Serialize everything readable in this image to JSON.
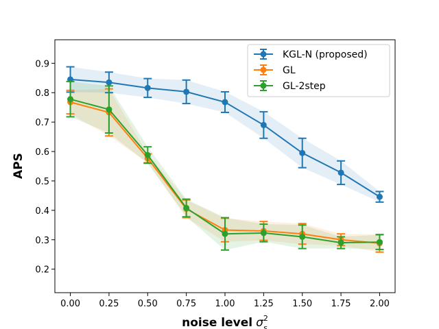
{
  "chart_data": {
    "type": "line",
    "title": "",
    "xlabel": "noise level",
    "xlabel_symbol": "σ",
    "xlabel_sup": "2",
    "xlabel_sub": "s",
    "ylabel": "APS",
    "xlim": [
      -0.1,
      2.1
    ],
    "ylim": [
      0.12,
      0.98
    ],
    "grid": false,
    "legend_position": "top-right",
    "x": [
      0.0,
      0.25,
      0.5,
      0.75,
      1.0,
      1.25,
      1.5,
      1.75,
      2.0
    ],
    "x_ticks": [
      0.0,
      0.25,
      0.5,
      0.75,
      1.0,
      1.25,
      1.5,
      1.75,
      2.0
    ],
    "x_tick_labels": [
      "0.00",
      "0.25",
      "0.50",
      "0.75",
      "1.00",
      "1.25",
      "1.50",
      "1.75",
      "2.00"
    ],
    "y_ticks": [
      0.2,
      0.3,
      0.4,
      0.5,
      0.6,
      0.7,
      0.8,
      0.9
    ],
    "y_tick_labels": [
      "0.2",
      "0.3",
      "0.4",
      "0.5",
      "0.6",
      "0.7",
      "0.8",
      "0.9"
    ],
    "series": [
      {
        "name": "KGL-N (proposed)",
        "color": "#1f77b4",
        "values": [
          0.845,
          0.835,
          0.816,
          0.803,
          0.768,
          0.69,
          0.595,
          0.528,
          0.446
        ],
        "errors": [
          0.043,
          0.035,
          0.032,
          0.04,
          0.035,
          0.045,
          0.05,
          0.04,
          0.018
        ]
      },
      {
        "name": "GL",
        "color": "#ff7f0e",
        "values": [
          0.768,
          0.733,
          0.577,
          0.405,
          0.333,
          0.33,
          0.32,
          0.3,
          0.288
        ],
        "errors": [
          0.04,
          0.08,
          0.015,
          0.03,
          0.04,
          0.032,
          0.035,
          0.02,
          0.03
        ]
      },
      {
        "name": "GL-2step",
        "color": "#2ca02c",
        "values": [
          0.778,
          0.743,
          0.588,
          0.408,
          0.32,
          0.323,
          0.31,
          0.29,
          0.292
        ],
        "errors": [
          0.06,
          0.08,
          0.028,
          0.03,
          0.055,
          0.03,
          0.04,
          0.02,
          0.025
        ]
      }
    ]
  }
}
